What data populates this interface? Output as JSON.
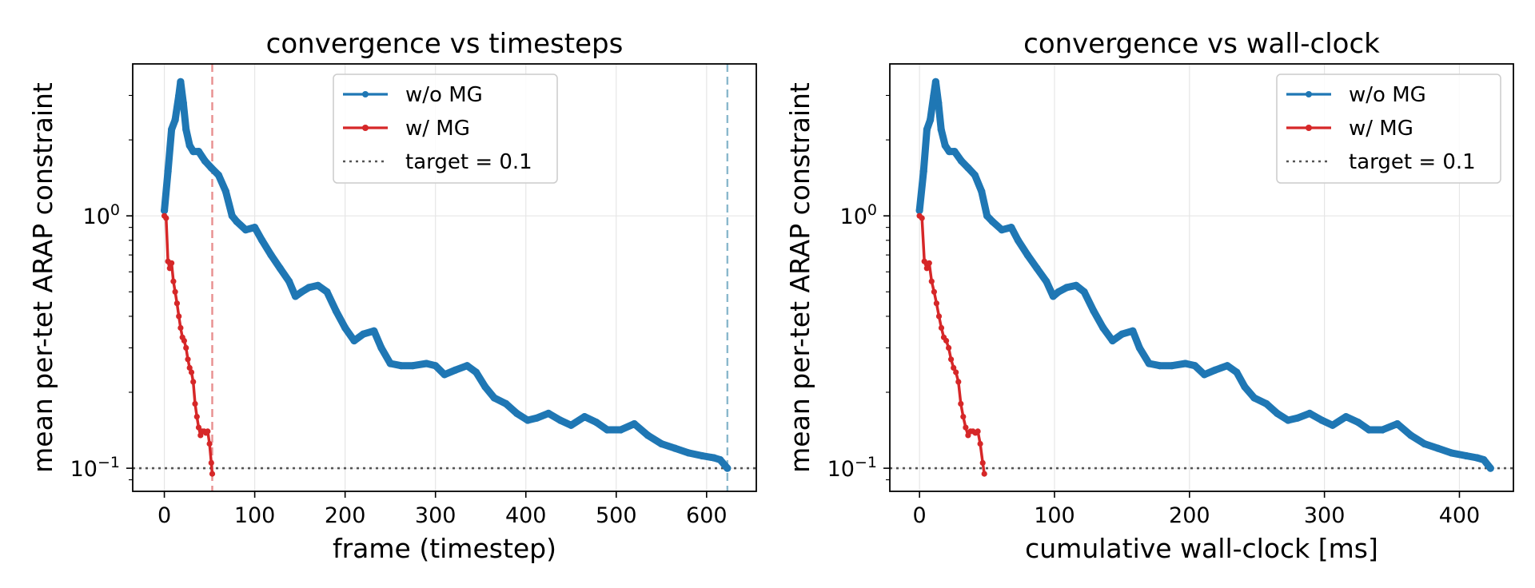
{
  "colors": {
    "without_mg": "#1f77b4",
    "with_mg": "#d62728",
    "target": "#555555",
    "vline_with_mg": "#e88f8f",
    "vline_without_mg": "#8ab8cc",
    "grid": "#e6e6e6"
  },
  "chart_data": [
    {
      "type": "line",
      "title": "convergence vs timesteps",
      "xlabel": "frame (timestep)",
      "ylabel": "mean per-tet ARAP constraint",
      "xlim": [
        -35,
        655
      ],
      "ylim": [
        0.081,
        4.0
      ],
      "yscale": "log",
      "xticks": [
        0,
        100,
        200,
        300,
        400,
        500,
        600
      ],
      "yticks": [
        {
          "value": 1.0,
          "base": "10",
          "exp": "0"
        },
        {
          "value": 0.1,
          "base": "10",
          "exp": "−1"
        }
      ],
      "grid": true,
      "legend": {
        "placement": "top-center",
        "entries": [
          {
            "label": "w/o MG",
            "kind": "line-marker",
            "color": "#1f77b4"
          },
          {
            "label": "w/ MG",
            "kind": "line-marker",
            "color": "#d62728"
          },
          {
            "label": "target = 0.1",
            "kind": "dotted",
            "color": "#555555"
          }
        ]
      },
      "hlines": [
        {
          "y": 0.1,
          "label": "target = 0.1",
          "style": "dotted",
          "color": "#555555"
        }
      ],
      "vlines": [
        {
          "x": 53,
          "style": "dashed",
          "color": "#e88f8f"
        },
        {
          "x": 623,
          "style": "dashed",
          "color": "#8ab8cc"
        }
      ],
      "series": [
        {
          "name": "w/o MG",
          "color": "#1f77b4",
          "points": [
            [
              0,
              1.05
            ],
            [
              4,
              1.5
            ],
            [
              8,
              2.2
            ],
            [
              12,
              2.4
            ],
            [
              16,
              3.0
            ],
            [
              18,
              3.4
            ],
            [
              21,
              2.8
            ],
            [
              24,
              2.2
            ],
            [
              28,
              1.9
            ],
            [
              32,
              1.8
            ],
            [
              38,
              1.8
            ],
            [
              45,
              1.65
            ],
            [
              52,
              1.55
            ],
            [
              60,
              1.45
            ],
            [
              68,
              1.25
            ],
            [
              75,
              1.0
            ],
            [
              80,
              0.95
            ],
            [
              90,
              0.88
            ],
            [
              100,
              0.9
            ],
            [
              108,
              0.8
            ],
            [
              118,
              0.7
            ],
            [
              128,
              0.62
            ],
            [
              138,
              0.55
            ],
            [
              145,
              0.48
            ],
            [
              152,
              0.5
            ],
            [
              160,
              0.52
            ],
            [
              170,
              0.53
            ],
            [
              180,
              0.5
            ],
            [
              190,
              0.42
            ],
            [
              200,
              0.36
            ],
            [
              210,
              0.32
            ],
            [
              220,
              0.34
            ],
            [
              232,
              0.35
            ],
            [
              240,
              0.3
            ],
            [
              250,
              0.26
            ],
            [
              262,
              0.255
            ],
            [
              275,
              0.255
            ],
            [
              290,
              0.26
            ],
            [
              300,
              0.255
            ],
            [
              310,
              0.235
            ],
            [
              322,
              0.245
            ],
            [
              335,
              0.255
            ],
            [
              345,
              0.24
            ],
            [
              355,
              0.21
            ],
            [
              365,
              0.19
            ],
            [
              378,
              0.18
            ],
            [
              390,
              0.165
            ],
            [
              402,
              0.155
            ],
            [
              412,
              0.158
            ],
            [
              425,
              0.165
            ],
            [
              438,
              0.155
            ],
            [
              450,
              0.148
            ],
            [
              465,
              0.16
            ],
            [
              478,
              0.152
            ],
            [
              490,
              0.142
            ],
            [
              505,
              0.142
            ],
            [
              520,
              0.15
            ],
            [
              535,
              0.135
            ],
            [
              550,
              0.125
            ],
            [
              565,
              0.12
            ],
            [
              580,
              0.115
            ],
            [
              595,
              0.112
            ],
            [
              608,
              0.11
            ],
            [
              615,
              0.108
            ],
            [
              623,
              0.1
            ]
          ]
        },
        {
          "name": "w/ MG",
          "color": "#d62728",
          "points": [
            [
              0,
              1.0
            ],
            [
              2,
              0.98
            ],
            [
              4,
              0.66
            ],
            [
              6,
              0.62
            ],
            [
              8,
              0.65
            ],
            [
              10,
              0.55
            ],
            [
              12,
              0.5
            ],
            [
              14,
              0.45
            ],
            [
              16,
              0.4
            ],
            [
              18,
              0.36
            ],
            [
              20,
              0.33
            ],
            [
              22,
              0.32
            ],
            [
              24,
              0.3
            ],
            [
              26,
              0.27
            ],
            [
              28,
              0.25
            ],
            [
              30,
              0.24
            ],
            [
              32,
              0.22
            ],
            [
              34,
              0.18
            ],
            [
              36,
              0.16
            ],
            [
              38,
              0.145
            ],
            [
              40,
              0.135
            ],
            [
              42,
              0.14
            ],
            [
              44,
              0.14
            ],
            [
              46,
              0.138
            ],
            [
              48,
              0.14
            ],
            [
              50,
              0.125
            ],
            [
              52,
              0.105
            ],
            [
              53,
              0.095
            ]
          ]
        }
      ]
    },
    {
      "type": "line",
      "title": "convergence vs wall-clock",
      "xlabel": "cumulative wall-clock [ms]",
      "ylabel": "mean per-tet ARAP constraint",
      "xlim": [
        -22,
        440
      ],
      "ylim": [
        0.081,
        4.0
      ],
      "yscale": "log",
      "xticks": [
        0,
        100,
        200,
        300,
        400
      ],
      "yticks": [
        {
          "value": 1.0,
          "base": "10",
          "exp": "0"
        },
        {
          "value": 0.1,
          "base": "10",
          "exp": "−1"
        }
      ],
      "grid": true,
      "legend": {
        "placement": "top-right",
        "entries": [
          {
            "label": "w/o MG",
            "kind": "line-marker",
            "color": "#1f77b4"
          },
          {
            "label": "w/ MG",
            "kind": "line-marker",
            "color": "#d62728"
          },
          {
            "label": "target = 0.1",
            "kind": "dotted",
            "color": "#555555"
          }
        ]
      },
      "hlines": [
        {
          "y": 0.1,
          "label": "target = 0.1",
          "style": "dotted",
          "color": "#555555"
        }
      ],
      "vlines": [],
      "series": [
        {
          "name": "w/o MG",
          "color": "#1f77b4",
          "points": [
            [
              0,
              1.05
            ],
            [
              3,
              1.5
            ],
            [
              5.5,
              2.2
            ],
            [
              8,
              2.4
            ],
            [
              10.5,
              3.0
            ],
            [
              12,
              3.4
            ],
            [
              14,
              2.8
            ],
            [
              16,
              2.2
            ],
            [
              19,
              1.9
            ],
            [
              22,
              1.8
            ],
            [
              26,
              1.8
            ],
            [
              31,
              1.65
            ],
            [
              36,
              1.55
            ],
            [
              41,
              1.45
            ],
            [
              46,
              1.25
            ],
            [
              50,
              1.0
            ],
            [
              54,
              0.95
            ],
            [
              61,
              0.88
            ],
            [
              68,
              0.9
            ],
            [
              73,
              0.8
            ],
            [
              80,
              0.7
            ],
            [
              87,
              0.62
            ],
            [
              94,
              0.55
            ],
            [
              99,
              0.48
            ],
            [
              103,
              0.5
            ],
            [
              109,
              0.52
            ],
            [
              116,
              0.53
            ],
            [
              122,
              0.5
            ],
            [
              129,
              0.42
            ],
            [
              136,
              0.36
            ],
            [
              143,
              0.32
            ],
            [
              150,
              0.34
            ],
            [
              158,
              0.35
            ],
            [
              163,
              0.3
            ],
            [
              170,
              0.26
            ],
            [
              178,
              0.255
            ],
            [
              187,
              0.255
            ],
            [
              197,
              0.26
            ],
            [
              204,
              0.255
            ],
            [
              211,
              0.235
            ],
            [
              219,
              0.245
            ],
            [
              228,
              0.255
            ],
            [
              235,
              0.24
            ],
            [
              241,
              0.21
            ],
            [
              248,
              0.19
            ],
            [
              257,
              0.18
            ],
            [
              265,
              0.165
            ],
            [
              273,
              0.155
            ],
            [
              280,
              0.158
            ],
            [
              289,
              0.165
            ],
            [
              298,
              0.155
            ],
            [
              306,
              0.148
            ],
            [
              316,
              0.16
            ],
            [
              325,
              0.152
            ],
            [
              333,
              0.142
            ],
            [
              343,
              0.142
            ],
            [
              354,
              0.15
            ],
            [
              364,
              0.135
            ],
            [
              374,
              0.125
            ],
            [
              384,
              0.12
            ],
            [
              394,
              0.115
            ],
            [
              405,
              0.112
            ],
            [
              413,
              0.11
            ],
            [
              418,
              0.108
            ],
            [
              423,
              0.1
            ]
          ]
        },
        {
          "name": "w/ MG",
          "color": "#d62728",
          "points": [
            [
              0,
              1.0
            ],
            [
              1.8,
              0.98
            ],
            [
              3.6,
              0.66
            ],
            [
              5.4,
              0.62
            ],
            [
              7.2,
              0.65
            ],
            [
              9,
              0.55
            ],
            [
              10.8,
              0.5
            ],
            [
              12.6,
              0.45
            ],
            [
              14.4,
              0.4
            ],
            [
              16.2,
              0.36
            ],
            [
              18,
              0.33
            ],
            [
              19.8,
              0.32
            ],
            [
              21.6,
              0.3
            ],
            [
              23.4,
              0.27
            ],
            [
              25.2,
              0.25
            ],
            [
              27,
              0.24
            ],
            [
              28.8,
              0.22
            ],
            [
              30.6,
              0.18
            ],
            [
              32.4,
              0.16
            ],
            [
              34.2,
              0.145
            ],
            [
              36,
              0.135
            ],
            [
              37.8,
              0.14
            ],
            [
              39.6,
              0.14
            ],
            [
              41.4,
              0.138
            ],
            [
              43.2,
              0.14
            ],
            [
              45,
              0.125
            ],
            [
              46.8,
              0.105
            ],
            [
              48,
              0.095
            ]
          ]
        }
      ]
    }
  ]
}
